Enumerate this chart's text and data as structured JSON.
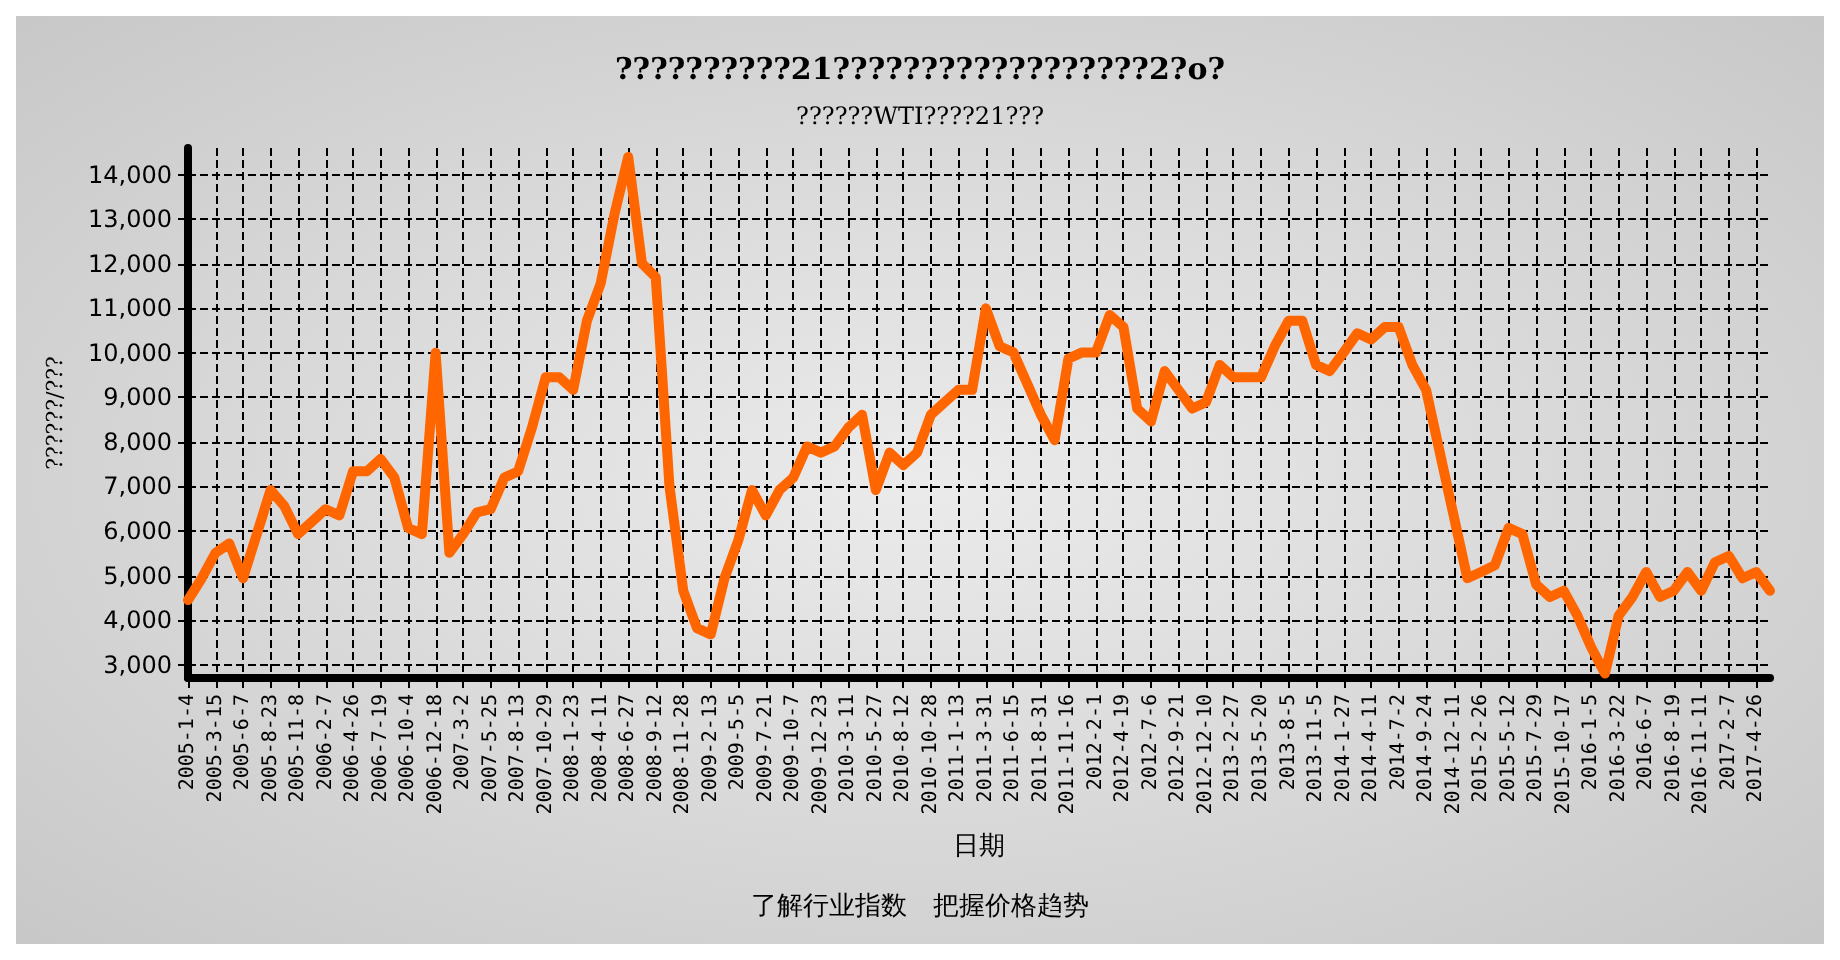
{
  "chart_data": {
    "type": "line",
    "title": "??????????21??????????????????2?o?",
    "subtitle": "??????WTI????21???",
    "xlabel": "日期",
    "ylabel": "??????/???",
    "annotations": [
      "了解行业指数　把握价格趋势"
    ],
    "categories": [
      "2005-1-4",
      null,
      "2005-3-15",
      null,
      "2005-6-7",
      null,
      "2005-8-23",
      null,
      "2005-11-8",
      null,
      "2006-2-7",
      null,
      "2006-4-26",
      null,
      "2006-7-19",
      null,
      "2006-10-4",
      null,
      "2006-12-18",
      null,
      "2007-3-2",
      null,
      "2007-5-25",
      null,
      "2007-8-13",
      null,
      "2007-10-29",
      null,
      "2008-1-23",
      null,
      "2008-4-11",
      null,
      "2008-6-27",
      null,
      "2008-9-12",
      null,
      "2008-11-28",
      null,
      "2009-2-13",
      null,
      "2009-5-5",
      null,
      "2009-7-21",
      null,
      "2009-10-7",
      null,
      "2009-12-23",
      null,
      "2010-3-11",
      null,
      "2010-5-27",
      null,
      "2010-8-12",
      null,
      "2010-10-28",
      null,
      "2011-1-13",
      null,
      "2011-3-31",
      null,
      "2011-6-15",
      null,
      "2011-8-31",
      null,
      "2011-11-16",
      null,
      "2012-2-1",
      null,
      "2012-4-19",
      null,
      "2012-7-6",
      null,
      "2012-9-21",
      null,
      "2012-12-10",
      null,
      "2013-2-27",
      null,
      "2013-5-20",
      null,
      "2013-8-5",
      null,
      "2013-11-5",
      null,
      "2014-1-27",
      null,
      "2014-4-11",
      null,
      "2014-7-2",
      null,
      "2014-9-24",
      null,
      "2014-12-11",
      null,
      "2015-2-26",
      null,
      "2015-5-12",
      null,
      "2015-7-29",
      null,
      "2015-10-17",
      null,
      "2016-1-5",
      null,
      "2016-3-22",
      null,
      "2016-6-7",
      null,
      "2016-8-19",
      null,
      "2016-11-11",
      null,
      "2017-2-7",
      null,
      "2017-4-26",
      null
    ],
    "series": [
      {
        "color": "#ff6600",
        "values": [
          4450,
          4940,
          5510,
          5720,
          4940,
          5930,
          6920,
          6560,
          5930,
          6210,
          6490,
          6350,
          7340,
          7340,
          7620,
          7200,
          6070,
          5930,
          10000,
          5510,
          5930,
          6420,
          6490,
          7200,
          7340,
          8320,
          9450,
          9450,
          9170,
          10720,
          11560,
          13110,
          14400,
          12010,
          11700,
          7000,
          4660,
          3820,
          3680,
          4940,
          5790,
          6920,
          6350,
          6920,
          7200,
          7900,
          7760,
          7900,
          8320,
          8610,
          6920,
          7760,
          7480,
          7760,
          8610,
          8890,
          9170,
          9170,
          11000,
          10150,
          10010,
          9310,
          8610,
          8040,
          9870,
          10010,
          10010,
          10850,
          10580,
          8750,
          8460,
          9590,
          9170,
          8750,
          8890,
          9730,
          9450,
          9450,
          9450,
          10150,
          10720,
          10720,
          9730,
          9590,
          10010,
          10440,
          10300,
          10580,
          10580,
          9730,
          9170,
          7760,
          6350,
          4940,
          5080,
          5230,
          6070,
          5930,
          4800,
          4520,
          4660,
          4100,
          3390,
          2800,
          4100,
          4520,
          5080,
          4520,
          4660,
          5080,
          4660,
          5300,
          5440,
          4940,
          5080,
          4660
        ]
      }
    ],
    "ylim": [
      2700,
      14600
    ],
    "yticks": [
      {
        "value": 3000,
        "label": "3,000"
      },
      {
        "value": 4000,
        "label": "4,000"
      },
      {
        "value": 5000,
        "label": "5,000"
      },
      {
        "value": 6000,
        "label": "6,000"
      },
      {
        "value": 7000,
        "label": "7,000"
      },
      {
        "value": 8000,
        "label": "8,000"
      },
      {
        "value": 9000,
        "label": "9,000"
      },
      {
        "value": 10000,
        "label": "10,000"
      },
      {
        "value": 11000,
        "label": "11,000"
      },
      {
        "value": 12000,
        "label": "12,000"
      },
      {
        "value": 13000,
        "label": "13,000"
      },
      {
        "value": 14000,
        "label": "14,000"
      }
    ],
    "grid": true,
    "line_style": "solid"
  }
}
